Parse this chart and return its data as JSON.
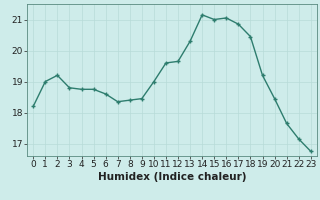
{
  "x": [
    0,
    1,
    2,
    3,
    4,
    5,
    6,
    7,
    8,
    9,
    10,
    11,
    12,
    13,
    14,
    15,
    16,
    17,
    18,
    19,
    20,
    21,
    22,
    23
  ],
  "y": [
    18.2,
    19.0,
    19.2,
    18.8,
    18.75,
    18.75,
    18.6,
    18.35,
    18.4,
    18.45,
    19.0,
    19.6,
    19.65,
    20.3,
    21.15,
    21.0,
    21.05,
    20.85,
    20.45,
    19.2,
    18.45,
    17.65,
    17.15,
    16.75
  ],
  "xlabel": "Humidex (Indice chaleur)",
  "ylim": [
    16.6,
    21.5
  ],
  "xlim": [
    -0.5,
    23.5
  ],
  "yticks": [
    17,
    18,
    19,
    20,
    21
  ],
  "xticks": [
    0,
    1,
    2,
    3,
    4,
    5,
    6,
    7,
    8,
    9,
    10,
    11,
    12,
    13,
    14,
    15,
    16,
    17,
    18,
    19,
    20,
    21,
    22,
    23
  ],
  "line_color": "#2e7d6e",
  "marker": "+",
  "bg_color": "#ceecea",
  "grid_color": "#b8dbd8",
  "axis_color": "#5a8a80",
  "tick_label_color": "#222222",
  "xlabel_color": "#222222",
  "xlabel_fontsize": 7.5,
  "tick_fontsize": 6.5,
  "linewidth": 1.0,
  "markersize": 3.5,
  "markeredgewidth": 1.0
}
